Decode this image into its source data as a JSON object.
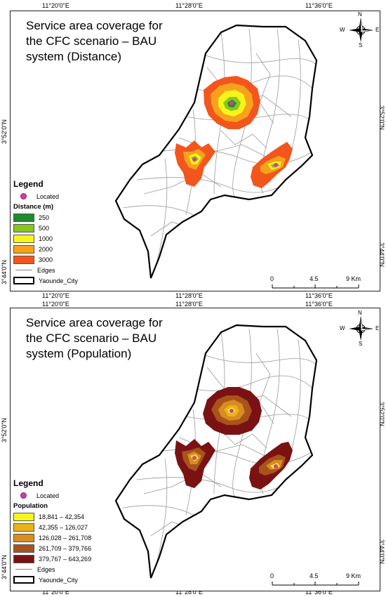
{
  "coordinates": {
    "top_labels": [
      "11°20'0\"E",
      "11°28'0\"E",
      "11°36'0\"E"
    ],
    "side_labels": [
      "3°52'0\"N",
      "3°44'0\"N"
    ]
  },
  "panel1": {
    "title_line1": "Service area coverage for",
    "title_line2": "the CFC scenario – BAU",
    "title_line3": "system (Distance)",
    "legend_title": "Legend",
    "located_label": "Located",
    "class_heading": "Distance (m)",
    "classes": [
      {
        "label": "250",
        "color": "#1f8a2e"
      },
      {
        "label": "500",
        "color": "#86c61e"
      },
      {
        "label": "1000",
        "color": "#f5f51a"
      },
      {
        "label": "2000",
        "color": "#f7a21c"
      },
      {
        "label": "3000",
        "color": "#f2561d"
      }
    ],
    "edges_label": "Edges",
    "city_label": "Yaounde_City",
    "scale": [
      "0",
      "4.5",
      "9 Km"
    ]
  },
  "panel2": {
    "title_line1": "Service area coverage for",
    "title_line2": "the CFC scenario – BAU",
    "title_line3": "system (Population)",
    "legend_title": "Legend",
    "located_label": "Located",
    "class_heading": "Population",
    "classes": [
      {
        "label": "18,841 – 42,354",
        "color": "#f6f51c"
      },
      {
        "label": "42,355 – 126,027",
        "color": "#e9b21b"
      },
      {
        "label": "126,028 – 261,708",
        "color": "#d98c1f"
      },
      {
        "label": "261,709 – 379,766",
        "color": "#a8531c"
      },
      {
        "label": "379,767 – 643,269",
        "color": "#7a1214"
      }
    ],
    "edges_label": "Edges",
    "city_label": "Yaounde_City",
    "scale": [
      "0",
      "4.5",
      "9 Km"
    ]
  },
  "north_arrow": {
    "n": "N",
    "s": "S",
    "e": "E",
    "w": "W"
  },
  "colors": {
    "boundary": "#000000",
    "roads": "#9a9a9a",
    "located": "#d63ba5"
  }
}
